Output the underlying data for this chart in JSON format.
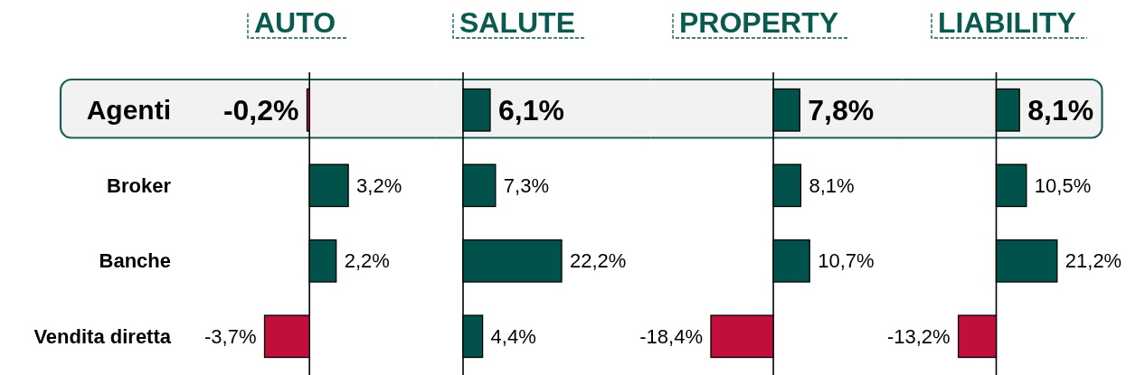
{
  "chart_data": [
    {
      "type": "bar",
      "orientation": "horizontal",
      "title": "AUTO",
      "categories": [
        "Agenti",
        "Broker",
        "Banche",
        "Vendita diretta"
      ],
      "values": [
        -0.2,
        3.2,
        2.2,
        -3.7
      ],
      "colors": [
        "#c20e3a",
        "#00524b",
        "#00524b",
        "#c20e3a"
      ],
      "value_labels": [
        "-0,2%",
        "3,2%",
        "2,2%",
        "-3,7%"
      ],
      "tick_labels": "y",
      "bands": [
        {
          "axis": "y",
          "from": "Agenti",
          "to": "Agenti",
          "color": "#f2f2f2"
        }
      ]
    },
    {
      "type": "bar",
      "orientation": "horizontal",
      "title": "SALUTE",
      "categories": [
        "Agenti",
        "Broker",
        "Banche",
        "Vendita diretta"
      ],
      "values": [
        6.1,
        7.3,
        22.2,
        4.4
      ],
      "colors": [
        "#00524b",
        "#00524b",
        "#00524b",
        "#00524b"
      ],
      "value_labels": [
        "6,1%",
        "7,3%",
        "22,2%",
        "4,4%"
      ],
      "tick_labels": false,
      "bands": [
        {
          "axis": "y",
          "from": "Agenti",
          "to": "Agenti",
          "color": "#f2f2f2"
        }
      ]
    },
    {
      "type": "bar",
      "orientation": "horizontal",
      "title": "PROPERTY",
      "categories": [
        "Agenti",
        "Broker",
        "Banche",
        "Vendita diretta"
      ],
      "values": [
        7.8,
        8.1,
        10.7,
        -18.4
      ],
      "colors": [
        "#00524b",
        "#00524b",
        "#00524b",
        "#c20e3a"
      ],
      "value_labels": [
        "7,8%",
        "8,1%",
        "10,7%",
        "-18,4%"
      ],
      "tick_labels": false,
      "bands": [
        {
          "axis": "y",
          "from": "Agenti",
          "to": "Agenti",
          "color": "#f2f2f2"
        }
      ]
    },
    {
      "type": "bar",
      "orientation": "horizontal",
      "title": "LIABILITY",
      "categories": [
        "Agenti",
        "Broker",
        "Banche",
        "Vendita diretta"
      ],
      "values": [
        8.1,
        10.5,
        21.2,
        -13.2
      ],
      "colors": [
        "#00524b",
        "#00524b",
        "#00524b",
        "#c20e3a"
      ],
      "value_labels": [
        "8,1%",
        "10,5%",
        "21,2%",
        "-13,2%"
      ],
      "tick_labels": false,
      "bands": [
        {
          "axis": "y",
          "from": "Agenti",
          "to": "Agenti",
          "color": "#f2f2f2"
        }
      ]
    }
  ]
}
